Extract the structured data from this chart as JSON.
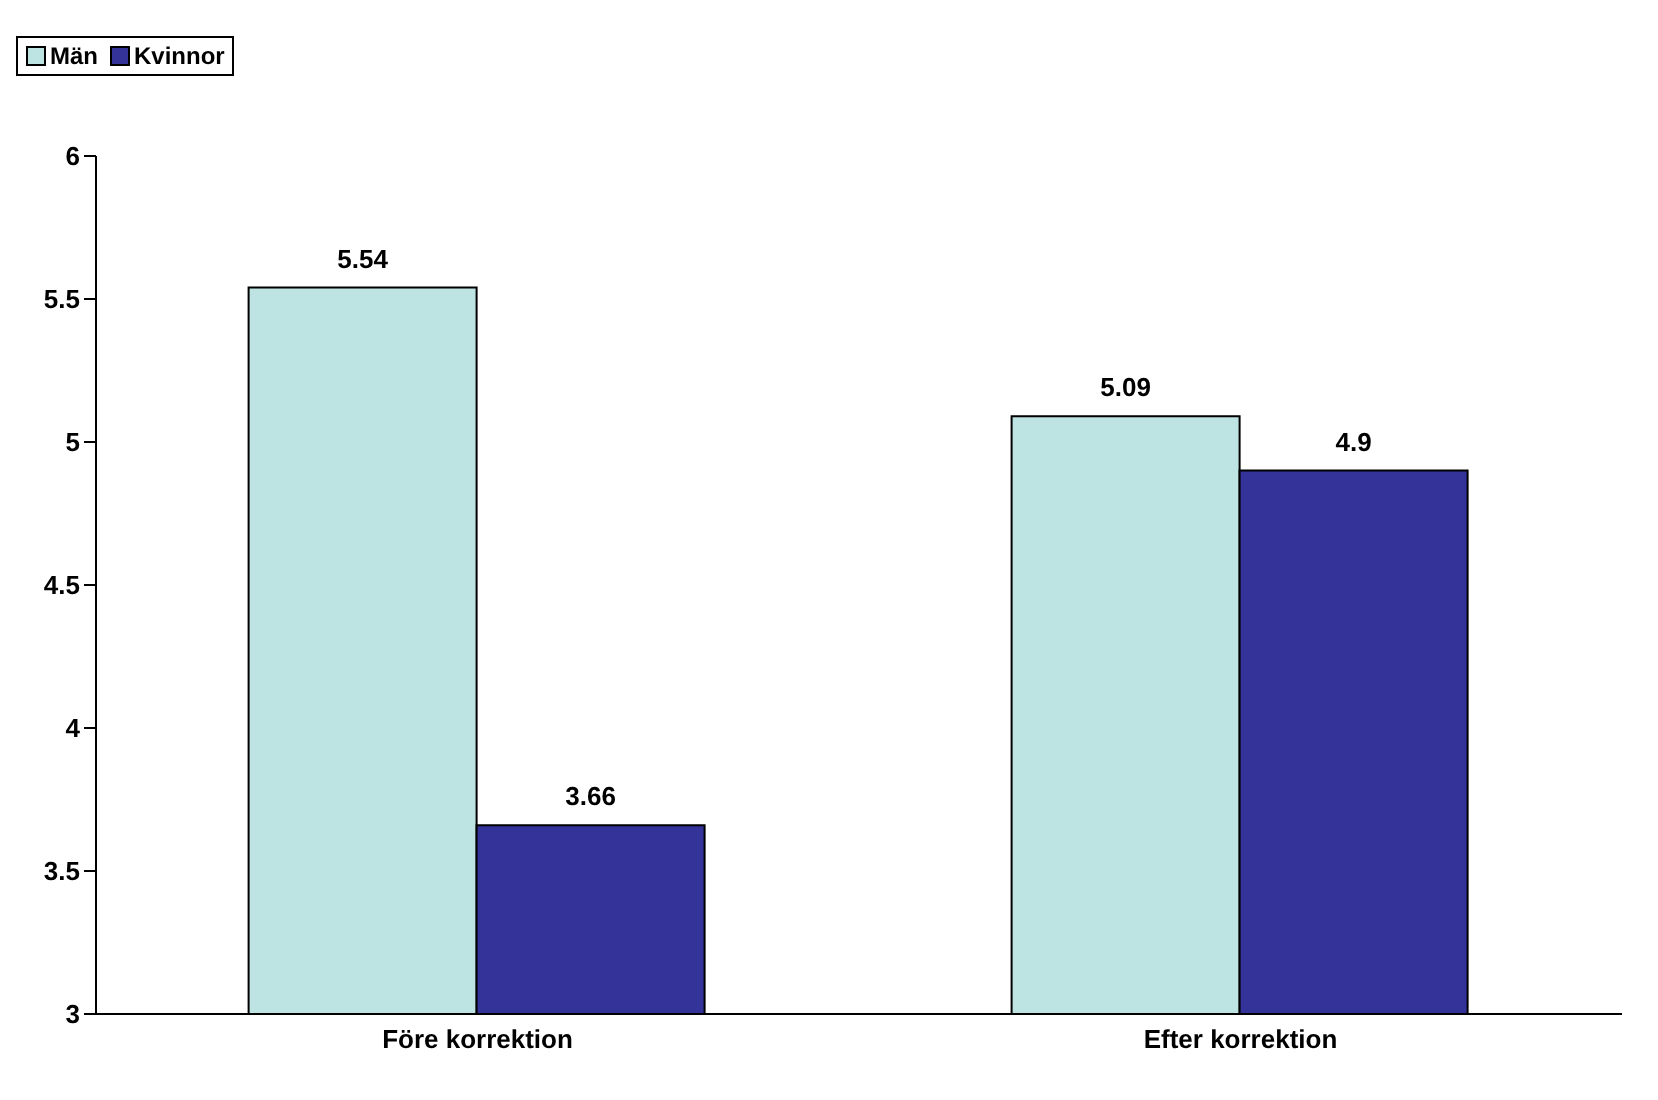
{
  "chart_data": {
    "type": "bar",
    "categories": [
      "Före korrektion",
      "Efter korrektion"
    ],
    "series": [
      {
        "name": "Män",
        "color": "#bde3e3",
        "values": [
          5.54,
          5.09
        ]
      },
      {
        "name": "Kvinnor",
        "color": "#333399",
        "values": [
          3.66,
          4.9
        ]
      }
    ],
    "ylim": [
      3,
      6
    ],
    "yticks": [
      3,
      3.5,
      4,
      4.5,
      5,
      5.5,
      6
    ],
    "grid": false,
    "legend": "top",
    "data_labels": true
  }
}
